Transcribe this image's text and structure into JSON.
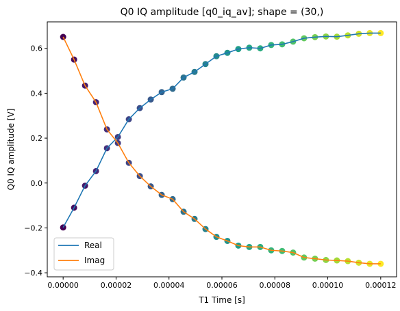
{
  "chart_data": {
    "type": "scatter",
    "title": "Q0 IQ amplitude [q0_iq_av]; shape = (30,)",
    "xlabel": "T1 Time [s]",
    "ylabel": "Q0 IQ amplitude [V]",
    "xlim": [
      -6e-06,
      0.000126
    ],
    "ylim": [
      -0.418,
      0.718
    ],
    "xticks": [
      "0.00000",
      "0.00002",
      "0.00004",
      "0.00006",
      "0.00008",
      "0.00010",
      "0.00012"
    ],
    "xtick_values": [
      0,
      2e-05,
      4e-05,
      6e-05,
      8e-05,
      0.0001,
      0.00012
    ],
    "yticks": [
      "−0.4",
      "−0.2",
      "0.0",
      "0.2",
      "0.4",
      "0.6"
    ],
    "ytick_values": [
      -0.4,
      -0.2,
      0.0,
      0.2,
      0.4,
      0.6
    ],
    "grid": false,
    "legend_placement": "lower-left",
    "colormap": "viridis",
    "x": [
      0,
      4.1379e-06,
      8.2759e-06,
      1.24138e-05,
      1.65517e-05,
      2.06897e-05,
      2.48276e-05,
      2.89655e-05,
      3.31034e-05,
      3.72414e-05,
      4.13793e-05,
      4.55172e-05,
      4.96552e-05,
      5.37931e-05,
      5.7931e-05,
      6.2069e-05,
      6.62069e-05,
      7.03448e-05,
      7.44828e-05,
      7.86207e-05,
      8.27586e-05,
      8.68966e-05,
      9.10345e-05,
      9.51724e-05,
      9.93103e-05,
      0.0001034483,
      0.0001075862,
      0.0001117241,
      0.0001158621,
      0.00012
    ],
    "series": [
      {
        "name": "Real",
        "color": "#1f77b4",
        "values": [
          -0.198,
          -0.11,
          -0.012,
          0.053,
          0.155,
          0.205,
          0.284,
          0.334,
          0.372,
          0.405,
          0.42,
          0.47,
          0.495,
          0.53,
          0.565,
          0.58,
          0.597,
          0.603,
          0.6,
          0.615,
          0.618,
          0.63,
          0.645,
          0.65,
          0.653,
          0.652,
          0.658,
          0.665,
          0.668,
          0.668
        ]
      },
      {
        "name": "Imag",
        "color": "#ff7f0e",
        "values": [
          0.651,
          0.55,
          0.434,
          0.36,
          0.239,
          0.178,
          0.09,
          0.031,
          -0.015,
          -0.053,
          -0.072,
          -0.128,
          -0.16,
          -0.205,
          -0.24,
          -0.258,
          -0.279,
          -0.285,
          -0.285,
          -0.3,
          -0.303,
          -0.31,
          -0.332,
          -0.337,
          -0.343,
          -0.345,
          -0.348,
          -0.355,
          -0.36,
          -0.36
        ]
      }
    ]
  }
}
